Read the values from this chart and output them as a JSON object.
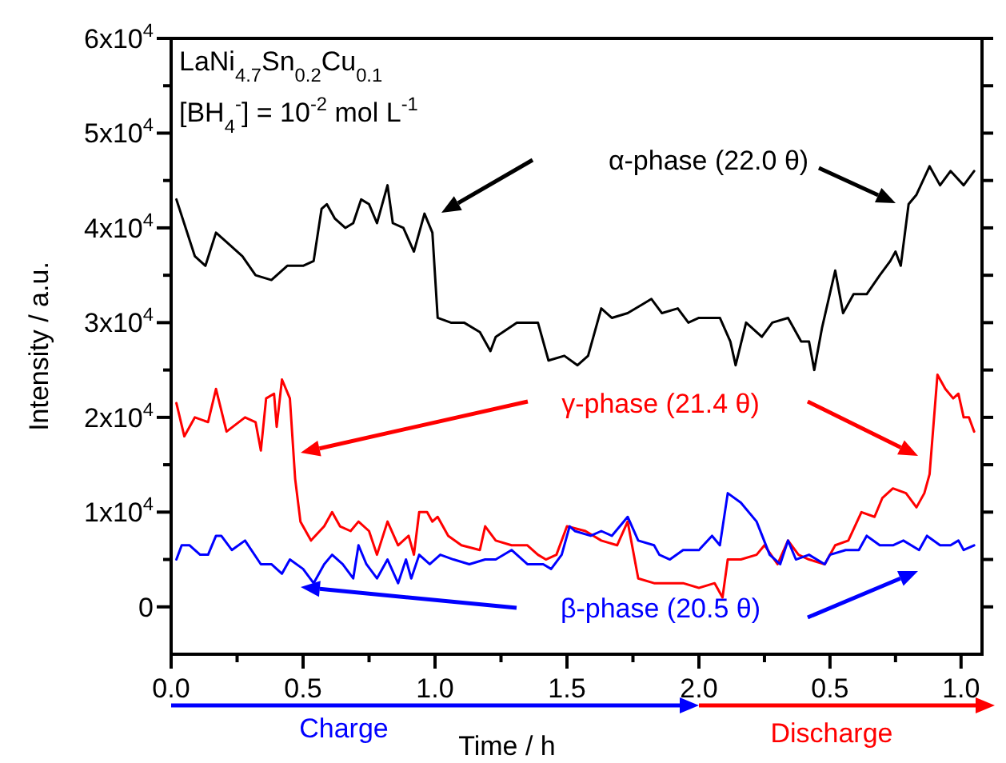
{
  "chart_data": [
    {
      "type": "line",
      "xlabel": "Time / h",
      "ylabel": "Intensity / a.u.",
      "xlim": [
        0,
        2
      ],
      "ylim": [
        -5000,
        60000
      ],
      "xticks": [
        {
          "value": 0,
          "label": "0.0"
        },
        {
          "value": 0.25,
          "label": null
        },
        {
          "value": 0.5,
          "label": "0.5"
        },
        {
          "value": 0.75,
          "label": null
        },
        {
          "value": 1,
          "label": "1.0"
        },
        {
          "value": 1.25,
          "label": null
        },
        {
          "value": 1.5,
          "label": "1.5"
        },
        {
          "value": 1.75,
          "label": null
        },
        {
          "value": 2,
          "label": "2.0"
        }
      ],
      "yticks": [
        0,
        {
          "value": 5000,
          "label": null
        },
        {
          "value": 10000,
          "label": "1x10$^{4}$"
        },
        {
          "value": 15000,
          "label": null
        },
        {
          "value": 20000,
          "label": "2x10$^{4}$"
        },
        {
          "value": 25000,
          "label": null
        },
        {
          "value": 30000,
          "label": "3x10$^{4}$"
        },
        {
          "value": 35000,
          "label": null
        },
        {
          "value": 40000,
          "label": "4x10$^{4}$"
        },
        {
          "value": 45000,
          "label": null
        },
        {
          "value": 50000,
          "label": "5x10$^{4}$"
        },
        {
          "value": 55000,
          "label": null
        },
        {
          "value": 60000,
          "label": "6x10$^{4}$"
        }
      ],
      "grid": false,
      "marker": "none",
      "line_style": "solid",
      "series": [
        {
          "name": "α-phase (22.0 θ)",
          "color": "#000000",
          "x": [
            0.02,
            0.09,
            0.13,
            0.17,
            0.21,
            0.27,
            0.32,
            0.38,
            0.44,
            0.5,
            0.54,
            0.57,
            0.59,
            0.62,
            0.66,
            0.69,
            0.72,
            0.75,
            0.78,
            0.82,
            0.84,
            0.88,
            0.92,
            0.96,
            0.99,
            1.01,
            1.06,
            1.11,
            1.17,
            1.21,
            1.23,
            1.31,
            1.39,
            1.43,
            1.49,
            1.54,
            1.58,
            1.63,
            1.67,
            1.73,
            1.79,
            1.82,
            1.86,
            1.92,
            1.96,
            2.0
          ],
          "values": [
            43000,
            37000,
            36000,
            39500,
            38500,
            37000,
            35000,
            34500,
            36000,
            36000,
            36500,
            42000,
            42500,
            41000,
            40000,
            40500,
            43000,
            42500,
            40500,
            44500,
            40500,
            40000,
            37500,
            41500,
            39500,
            30500,
            30000,
            30000,
            29000,
            27000,
            28500,
            30000,
            30000,
            26000,
            26500,
            25500,
            26500,
            31500,
            30500,
            31000,
            32000,
            32500,
            31000,
            31500,
            30000,
            30500
          ]
        },
        {
          "name": "γ-phase (21.4 θ)",
          "color": "#ff0000",
          "x": [
            0.02,
            0.05,
            0.09,
            0.14,
            0.17,
            0.21,
            0.28,
            0.32,
            0.34,
            0.36,
            0.39,
            0.4,
            0.42,
            0.45,
            0.47,
            0.49,
            0.53,
            0.58,
            0.61,
            0.64,
            0.68,
            0.71,
            0.75,
            0.78,
            0.82,
            0.86,
            0.9,
            0.92,
            0.94,
            0.97,
            0.99,
            1.01,
            1.05,
            1.1,
            1.17,
            1.19,
            1.23,
            1.29,
            1.35,
            1.39,
            1.42,
            1.46,
            1.5,
            1.57,
            1.63,
            1.69,
            1.73,
            1.77,
            1.83,
            1.88,
            1.94,
            2.0
          ],
          "values": [
            21500,
            18000,
            20000,
            19500,
            23000,
            18500,
            20000,
            19500,
            16500,
            22000,
            22500,
            19000,
            24000,
            22000,
            13500,
            9000,
            7000,
            8500,
            10000,
            8500,
            8000,
            9000,
            8000,
            5500,
            9000,
            6500,
            7500,
            5500,
            10000,
            10000,
            9000,
            9500,
            7500,
            6500,
            6000,
            8500,
            7000,
            6500,
            6500,
            5500,
            5000,
            5500,
            8500,
            8000,
            7000,
            6500,
            9000,
            3000,
            2500,
            2500,
            2500,
            2000
          ]
        },
        {
          "name": "β-phase (20.5 θ)",
          "color": "#0000ff",
          "x": [
            0.02,
            0.04,
            0.07,
            0.11,
            0.14,
            0.17,
            0.19,
            0.23,
            0.28,
            0.34,
            0.38,
            0.42,
            0.45,
            0.5,
            0.54,
            0.58,
            0.61,
            0.65,
            0.69,
            0.71,
            0.74,
            0.78,
            0.82,
            0.86,
            0.89,
            0.91,
            0.94,
            0.98,
            1.02,
            1.07,
            1.13,
            1.19,
            1.23,
            1.29,
            1.35,
            1.41,
            1.44,
            1.48,
            1.51,
            1.53,
            1.59,
            1.63,
            1.67,
            1.73,
            1.77,
            1.83,
            1.85,
            1.89,
            1.94,
            2.0
          ],
          "values": [
            5000,
            6500,
            6500,
            5500,
            5500,
            7500,
            7500,
            6000,
            7000,
            4500,
            4500,
            3500,
            5000,
            4000,
            2500,
            4500,
            5500,
            4500,
            3000,
            6500,
            4500,
            3000,
            5000,
            2500,
            5000,
            3000,
            5500,
            4500,
            5500,
            5000,
            4500,
            5000,
            5000,
            6000,
            4500,
            4500,
            4000,
            5500,
            8500,
            8000,
            7500,
            8000,
            7500,
            9500,
            7000,
            6500,
            5500,
            5000,
            6000,
            6000
          ]
        }
      ],
      "annotations": [
        "LaNi$_{4.7}$Sn$_{0.2}$Cu$_{0.1}$",
        "[BH$_{4}$$^{-}$] = 10$^{-2}$ mol L$^{-1}$",
        "Charge"
      ]
    },
    {
      "type": "line",
      "xlim": [
        0,
        1.08
      ],
      "ylim": [
        -5000,
        60000
      ],
      "tick_labels": "x",
      "xticks": [
        {
          "value": 0.25,
          "label": null
        },
        {
          "value": 0.5,
          "label": "0.5"
        },
        {
          "value": 0.75,
          "label": null
        },
        {
          "value": 1,
          "label": "1.0"
        }
      ],
      "yticks": [
        {
          "value": 0,
          "label": null
        },
        {
          "value": 5000,
          "label": null
        },
        {
          "value": 10000,
          "label": null
        },
        {
          "value": 15000,
          "label": null
        },
        {
          "value": 20000,
          "label": null
        },
        {
          "value": 25000,
          "label": null
        },
        {
          "value": 30000,
          "label": null
        },
        {
          "value": 35000,
          "label": null
        },
        {
          "value": 40000,
          "label": null
        },
        {
          "value": 45000,
          "label": null
        },
        {
          "value": 50000,
          "label": null
        },
        {
          "value": 55000,
          "label": null
        },
        {
          "value": 60000,
          "label": null
        }
      ],
      "grid": false,
      "marker": "none",
      "line_style": "solid",
      "series": [
        {
          "color": "#000000",
          "x": [
            0,
            0.02,
            0.08,
            0.12,
            0.14,
            0.18,
            0.24,
            0.28,
            0.34,
            0.39,
            0.42,
            0.44,
            0.47,
            0.52,
            0.55,
            0.59,
            0.64,
            0.69,
            0.73,
            0.75,
            0.77,
            0.8,
            0.83,
            0.88,
            0.92,
            0.96,
            1.01,
            1.05
          ],
          "values": [
            30500,
            30500,
            30500,
            28000,
            25500,
            30000,
            28500,
            30000,
            30500,
            28000,
            28000,
            25000,
            29500,
            35500,
            31000,
            33000,
            33000,
            35000,
            36500,
            37500,
            36000,
            42500,
            43500,
            46500,
            44500,
            46000,
            44500,
            46000
          ]
        },
        {
          "color": "#ff0000",
          "x": [
            0,
            0.06,
            0.09,
            0.11,
            0.16,
            0.22,
            0.25,
            0.3,
            0.34,
            0.38,
            0.42,
            0.48,
            0.52,
            0.57,
            0.62,
            0.67,
            0.7,
            0.74,
            0.79,
            0.83,
            0.86,
            0.88,
            0.91,
            0.94,
            0.97,
            0.99,
            1.01,
            1.03,
            1.05
          ],
          "values": [
            2000,
            2500,
            1000,
            5000,
            5000,
            5500,
            6500,
            4500,
            7000,
            5500,
            5000,
            4500,
            6500,
            7000,
            10000,
            9500,
            11500,
            12500,
            12000,
            10500,
            12000,
            14000,
            24500,
            23000,
            22000,
            22500,
            20000,
            20000,
            18500
          ]
        },
        {
          "color": "#0000ff",
          "x": [
            0,
            0.05,
            0.08,
            0.11,
            0.16,
            0.22,
            0.27,
            0.31,
            0.34,
            0.37,
            0.42,
            0.48,
            0.5,
            0.56,
            0.61,
            0.64,
            0.69,
            0.74,
            0.78,
            0.84,
            0.87,
            0.92,
            0.96,
            0.99,
            1.01,
            1.05
          ],
          "values": [
            6000,
            7500,
            6500,
            12000,
            11000,
            9000,
            5500,
            4500,
            7000,
            5000,
            5500,
            4500,
            5500,
            6000,
            6000,
            7500,
            6500,
            6500,
            7000,
            6000,
            7500,
            6500,
            6500,
            7000,
            6000,
            6500
          ]
        }
      ],
      "annotations": [
        "Discharge"
      ]
    }
  ]
}
